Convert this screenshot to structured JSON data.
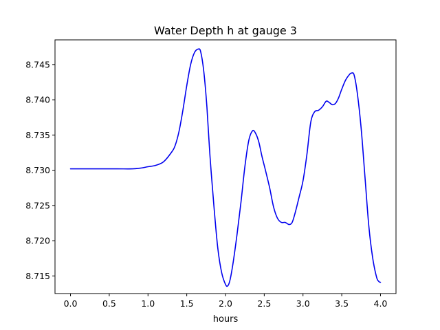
{
  "chart_data": {
    "type": "line",
    "title": "Water Depth h at gauge 3",
    "xlabel": "hours",
    "ylabel": "",
    "xlim": [
      -0.2,
      4.2
    ],
    "ylim": [
      8.7125,
      8.7485
    ],
    "x_ticks": [
      0.0,
      0.5,
      1.0,
      1.5,
      2.0,
      2.5,
      3.0,
      3.5,
      4.0
    ],
    "x_tick_labels": [
      "0.0",
      "0.5",
      "1.0",
      "1.5",
      "2.0",
      "2.5",
      "3.0",
      "3.5",
      "4.0"
    ],
    "y_ticks": [
      8.715,
      8.72,
      8.725,
      8.73,
      8.735,
      8.74,
      8.745
    ],
    "y_tick_labels": [
      "8.715",
      "8.720",
      "8.725",
      "8.730",
      "8.735",
      "8.740",
      "8.745"
    ],
    "grid": false,
    "colors": {
      "series": "#0000ee",
      "axes": "#000000"
    },
    "series": [
      {
        "x": [
          0.0,
          0.3,
          0.6,
          0.8,
          0.9,
          1.0,
          1.1,
          1.2,
          1.3,
          1.35,
          1.4,
          1.45,
          1.5,
          1.55,
          1.6,
          1.65,
          1.68,
          1.72,
          1.76,
          1.8,
          1.85,
          1.9,
          1.95,
          2.0,
          2.03,
          2.06,
          2.1,
          2.15,
          2.2,
          2.25,
          2.3,
          2.35,
          2.39,
          2.43,
          2.47,
          2.52,
          2.57,
          2.62,
          2.67,
          2.72,
          2.77,
          2.82,
          2.86,
          2.9,
          2.95,
          3.0,
          3.05,
          3.1,
          3.15,
          3.2,
          3.25,
          3.3,
          3.34,
          3.38,
          3.42,
          3.46,
          3.5,
          3.55,
          3.6,
          3.63,
          3.66,
          3.7,
          3.75,
          3.8,
          3.85,
          3.9,
          3.95,
          3.98,
          4.0
        ],
        "values": [
          8.7302,
          8.7302,
          8.7302,
          8.7302,
          8.7303,
          8.7305,
          8.7307,
          8.7312,
          8.7325,
          8.7335,
          8.7355,
          8.7385,
          8.742,
          8.745,
          8.7467,
          8.7472,
          8.7468,
          8.744,
          8.739,
          8.732,
          8.725,
          8.719,
          8.7155,
          8.7138,
          8.7136,
          8.7145,
          8.717,
          8.721,
          8.7255,
          8.7305,
          8.7342,
          8.7356,
          8.7352,
          8.734,
          8.732,
          8.7298,
          8.7275,
          8.7248,
          8.7232,
          8.7226,
          8.7226,
          8.7223,
          8.7226,
          8.724,
          8.7262,
          8.7285,
          8.7322,
          8.7368,
          8.7383,
          8.7385,
          8.739,
          8.7398,
          8.7396,
          8.7393,
          8.7395,
          8.7403,
          8.7415,
          8.7428,
          8.7436,
          8.7438,
          8.7435,
          8.741,
          8.736,
          8.729,
          8.722,
          8.7175,
          8.7148,
          8.7142,
          8.7141
        ]
      }
    ]
  }
}
